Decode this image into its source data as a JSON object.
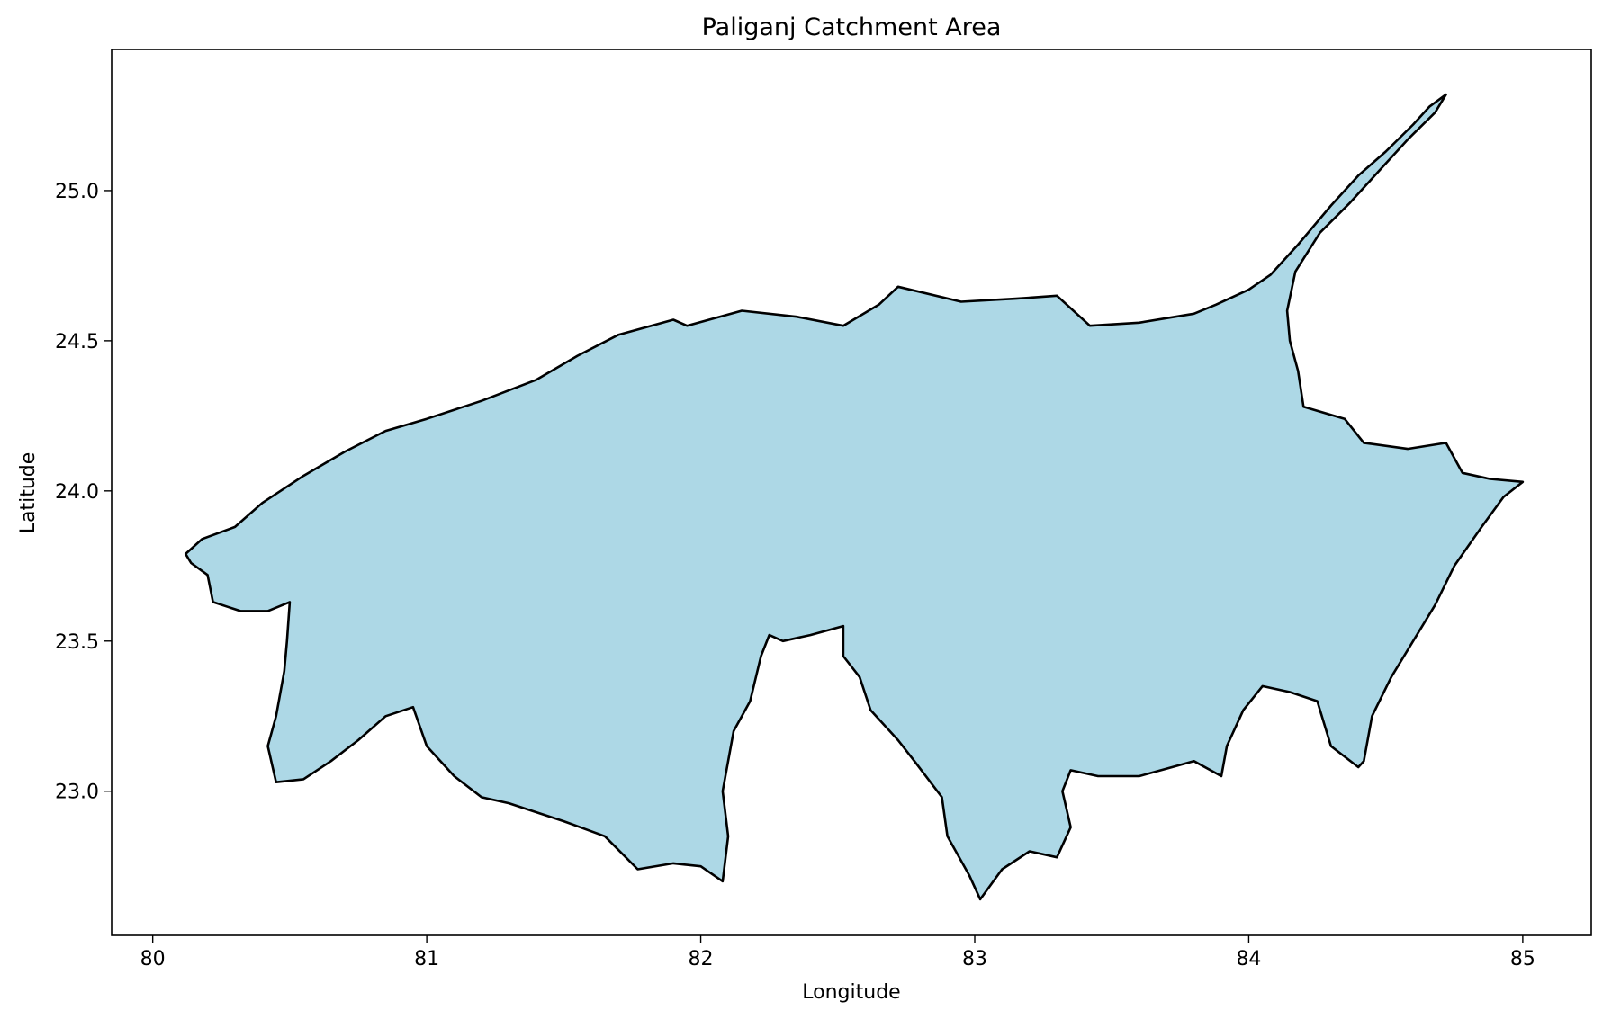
{
  "chart_data": {
    "type": "map",
    "title": "Paliganj Catchment Area",
    "xlabel": "Longitude",
    "ylabel": "Latitude",
    "xlim": [
      79.85,
      85.25
    ],
    "ylim": [
      22.52,
      25.47
    ],
    "xticks": [
      80,
      81,
      82,
      83,
      84,
      85
    ],
    "yticks": [
      23.0,
      23.5,
      24.0,
      24.5,
      25.0
    ],
    "xtick_labels": [
      "80",
      "81",
      "82",
      "83",
      "84",
      "85"
    ],
    "ytick_labels": [
      "23.0",
      "23.5",
      "24.0",
      "24.5",
      "25.0"
    ],
    "grid": false,
    "region": {
      "name": "Paliganj Catchment",
      "fill": "#add8e6",
      "edge": "#000000",
      "boundary": [
        [
          80.12,
          23.79
        ],
        [
          80.18,
          23.84
        ],
        [
          80.3,
          23.88
        ],
        [
          80.4,
          23.96
        ],
        [
          80.55,
          24.05
        ],
        [
          80.7,
          24.13
        ],
        [
          80.85,
          24.2
        ],
        [
          81.0,
          24.24
        ],
        [
          81.2,
          24.3
        ],
        [
          81.4,
          24.37
        ],
        [
          81.55,
          24.45
        ],
        [
          81.7,
          24.52
        ],
        [
          81.9,
          24.57
        ],
        [
          81.95,
          24.55
        ],
        [
          82.15,
          24.6
        ],
        [
          82.35,
          24.58
        ],
        [
          82.52,
          24.55
        ],
        [
          82.65,
          24.62
        ],
        [
          82.72,
          24.68
        ],
        [
          82.95,
          24.63
        ],
        [
          83.15,
          24.64
        ],
        [
          83.3,
          24.65
        ],
        [
          83.42,
          24.55
        ],
        [
          83.6,
          24.56
        ],
        [
          83.8,
          24.59
        ],
        [
          83.88,
          24.62
        ],
        [
          84.0,
          24.67
        ],
        [
          84.08,
          24.72
        ],
        [
          84.18,
          24.82
        ],
        [
          84.3,
          24.95
        ],
        [
          84.4,
          25.05
        ],
        [
          84.5,
          25.13
        ],
        [
          84.6,
          25.22
        ],
        [
          84.66,
          25.28
        ],
        [
          84.72,
          25.32
        ],
        [
          84.68,
          25.26
        ],
        [
          84.58,
          25.17
        ],
        [
          84.47,
          25.06
        ],
        [
          84.37,
          24.96
        ],
        [
          84.26,
          24.86
        ],
        [
          84.17,
          24.73
        ],
        [
          84.14,
          24.6
        ],
        [
          84.15,
          24.5
        ],
        [
          84.18,
          24.4
        ],
        [
          84.2,
          24.28
        ],
        [
          84.35,
          24.24
        ],
        [
          84.42,
          24.16
        ],
        [
          84.58,
          24.14
        ],
        [
          84.72,
          24.16
        ],
        [
          84.78,
          24.06
        ],
        [
          84.88,
          24.04
        ],
        [
          85.0,
          24.03
        ],
        [
          84.93,
          23.98
        ],
        [
          84.85,
          23.88
        ],
        [
          84.75,
          23.75
        ],
        [
          84.68,
          23.62
        ],
        [
          84.6,
          23.5
        ],
        [
          84.52,
          23.38
        ],
        [
          84.45,
          23.25
        ],
        [
          84.42,
          23.1
        ],
        [
          84.4,
          23.08
        ],
        [
          84.3,
          23.15
        ],
        [
          84.25,
          23.3
        ],
        [
          84.15,
          23.33
        ],
        [
          84.05,
          23.35
        ],
        [
          83.98,
          23.27
        ],
        [
          83.92,
          23.15
        ],
        [
          83.9,
          23.05
        ],
        [
          83.8,
          23.1
        ],
        [
          83.72,
          23.08
        ],
        [
          83.6,
          23.05
        ],
        [
          83.45,
          23.05
        ],
        [
          83.35,
          23.07
        ],
        [
          83.32,
          23.0
        ],
        [
          83.35,
          22.88
        ],
        [
          83.3,
          22.78
        ],
        [
          83.2,
          22.8
        ],
        [
          83.1,
          22.74
        ],
        [
          83.02,
          22.64
        ],
        [
          82.98,
          22.72
        ],
        [
          82.9,
          22.85
        ],
        [
          82.88,
          22.98
        ],
        [
          82.78,
          23.1
        ],
        [
          82.72,
          23.17
        ],
        [
          82.62,
          23.27
        ],
        [
          82.58,
          23.38
        ],
        [
          82.52,
          23.45
        ],
        [
          82.52,
          23.55
        ],
        [
          82.4,
          23.52
        ],
        [
          82.3,
          23.5
        ],
        [
          82.25,
          23.52
        ],
        [
          82.22,
          23.45
        ],
        [
          82.18,
          23.3
        ],
        [
          82.12,
          23.2
        ],
        [
          82.08,
          23.0
        ],
        [
          82.1,
          22.85
        ],
        [
          82.08,
          22.7
        ],
        [
          82.0,
          22.75
        ],
        [
          81.9,
          22.76
        ],
        [
          81.77,
          22.74
        ],
        [
          81.65,
          22.85
        ],
        [
          81.5,
          22.9
        ],
        [
          81.3,
          22.96
        ],
        [
          81.2,
          22.98
        ],
        [
          81.1,
          23.05
        ],
        [
          81.0,
          23.15
        ],
        [
          80.95,
          23.28
        ],
        [
          80.85,
          23.25
        ],
        [
          80.75,
          23.17
        ],
        [
          80.65,
          23.1
        ],
        [
          80.55,
          23.04
        ],
        [
          80.45,
          23.03
        ],
        [
          80.42,
          23.15
        ],
        [
          80.45,
          23.25
        ],
        [
          80.48,
          23.4
        ],
        [
          80.49,
          23.5
        ],
        [
          80.5,
          23.63
        ],
        [
          80.42,
          23.6
        ],
        [
          80.32,
          23.6
        ],
        [
          80.22,
          23.63
        ],
        [
          80.2,
          23.72
        ],
        [
          80.14,
          23.76
        ],
        [
          80.12,
          23.79
        ]
      ]
    }
  }
}
